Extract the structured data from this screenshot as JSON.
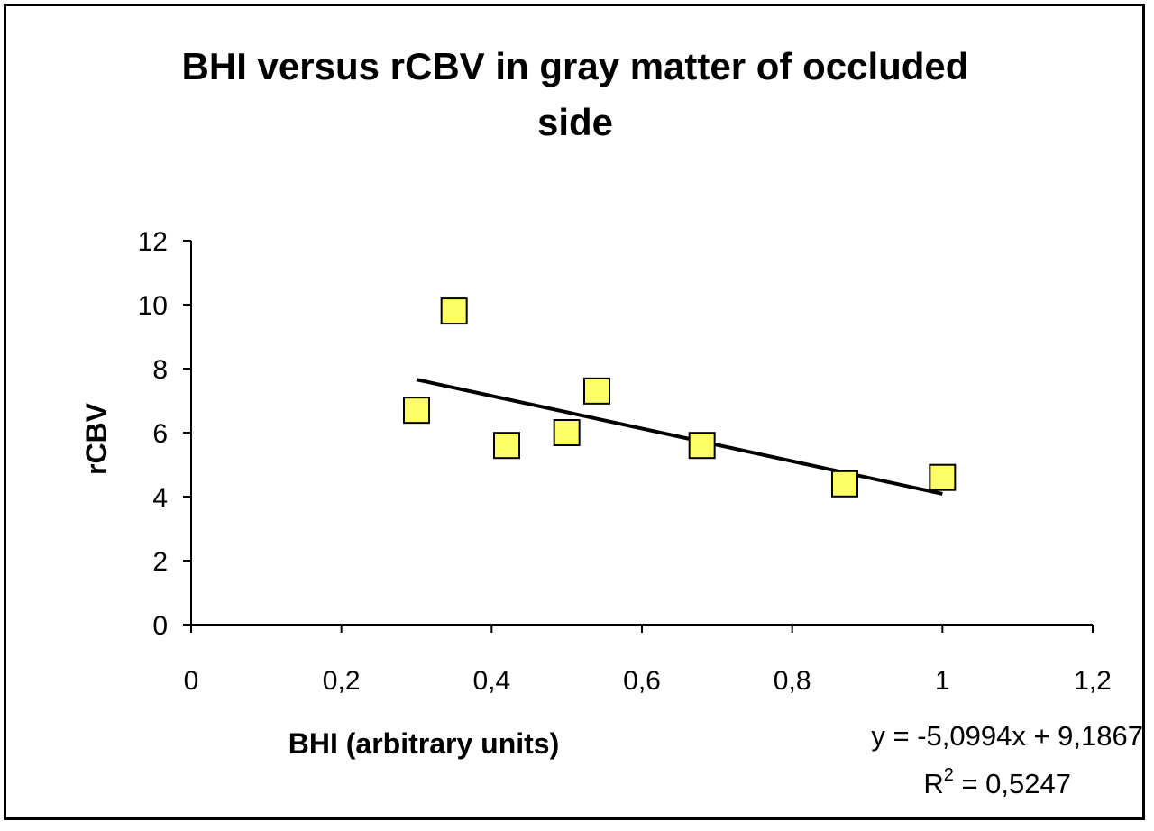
{
  "chart_data": {
    "type": "scatter",
    "title_lines": [
      "BHI versus rCBV in gray matter of occluded",
      "side"
    ],
    "xlabel": "BHI (arbitrary units)",
    "ylabel": "rCBV",
    "xlim": [
      0,
      1.2
    ],
    "ylim": [
      0,
      12
    ],
    "x_ticks": [
      "0",
      "0,2",
      "0,4",
      "0,6",
      "0,8",
      "1",
      "1,2"
    ],
    "y_ticks": [
      "0",
      "2",
      "4",
      "6",
      "8",
      "10",
      "12"
    ],
    "grid": false,
    "legend": false,
    "series": [
      {
        "points": [
          {
            "x": 0.3,
            "y": 6.7
          },
          {
            "x": 0.35,
            "y": 9.8
          },
          {
            "x": 0.42,
            "y": 5.6
          },
          {
            "x": 0.5,
            "y": 6.0
          },
          {
            "x": 0.54,
            "y": 7.3
          },
          {
            "x": 0.68,
            "y": 5.6
          },
          {
            "x": 0.87,
            "y": 4.4
          },
          {
            "x": 1.0,
            "y": 4.6
          }
        ],
        "marker": "square",
        "marker_fill": "#ffff66",
        "marker_stroke": "#000000"
      }
    ],
    "trendline": {
      "type": "linear",
      "slope": -5.0994,
      "intercept": 9.1867,
      "x_range": [
        0.3,
        1.0
      ],
      "color": "#000000",
      "equation": "y = -5,0994x + 9,1867",
      "r_squared_prefix": "R",
      "r_squared_sup": "2",
      "r_squared_value": " = 0,5247"
    }
  }
}
